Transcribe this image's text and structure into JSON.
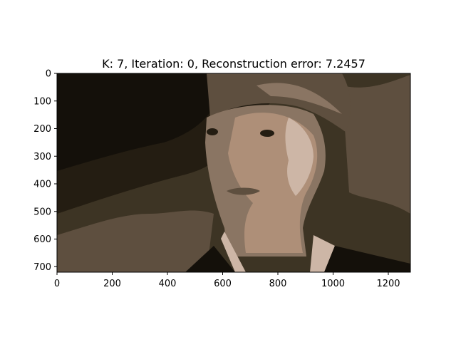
{
  "chart_data": {
    "type": "heatmap",
    "title": "K: 7, Iteration: 0, Reconstruction error: 7.2457",
    "subject": "k-means color-quantized portrait of a woman",
    "xlabel": "",
    "ylabel": "",
    "xlim": [
      0,
      1280
    ],
    "ylim": [
      720,
      0
    ],
    "xticks": [
      0,
      200,
      400,
      600,
      800,
      1000,
      1200
    ],
    "yticks": [
      0,
      100,
      200,
      300,
      400,
      500,
      600,
      700
    ],
    "grid": false,
    "legend": "none",
    "palette": [
      "#14100a",
      "#241d12",
      "#3d3424",
      "#5e4f3f",
      "#8a7563",
      "#ae8f78",
      "#cdb6a6"
    ]
  }
}
